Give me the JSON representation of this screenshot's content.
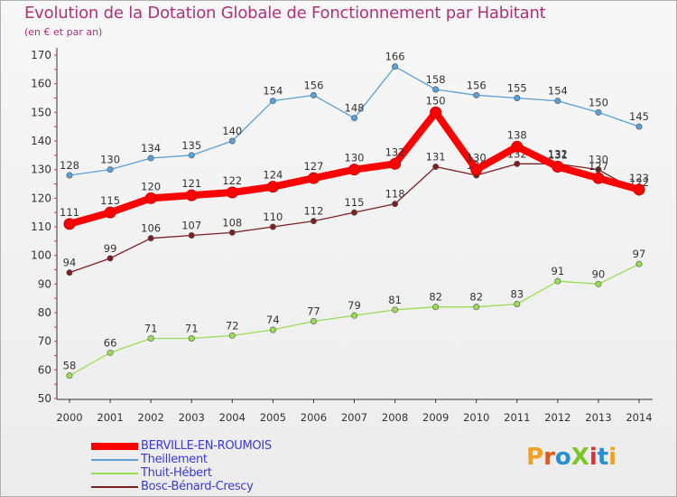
{
  "header": {
    "title": "Evolution de la Dotation Globale de Fonctionnement par Habitant",
    "subtitle": "(en € et par an)"
  },
  "logo": {
    "text": "ProXiti",
    "colors": [
      "#f0a020",
      "#e05a20",
      "#2a8fd0",
      "#7cc62a",
      "#e03030",
      "#2a8fd0",
      "#f0a020"
    ]
  },
  "chart_data": {
    "type": "line",
    "title": "Evolution de la Dotation Globale de Fonctionnement par Habitant",
    "subtitle": "(en € et par an)",
    "xlabel": "",
    "ylabel": "",
    "ylim": [
      50,
      170
    ],
    "yticks": [
      50,
      60,
      70,
      80,
      90,
      100,
      110,
      120,
      130,
      140,
      150,
      160,
      170
    ],
    "grid": false,
    "legend": "bottom-left",
    "categories": [
      "2000",
      "2001",
      "2002",
      "2003",
      "2004",
      "2005",
      "2006",
      "2007",
      "2008",
      "2009",
      "2010",
      "2011",
      "2012",
      "2013",
      "2014"
    ],
    "series": [
      {
        "name": "BERVILLE-EN-ROUMOIS",
        "color": "#ff0000",
        "labelColor": "#333333",
        "emphasis": true,
        "values": [
          111,
          115,
          120,
          121,
          122,
          124,
          127,
          130,
          132,
          150,
          130,
          138,
          131,
          127,
          123
        ]
      },
      {
        "name": "Theillement",
        "color": "#5aa0d8",
        "labelColor": "#333333",
        "emphasis": false,
        "values": [
          128,
          130,
          134,
          135,
          140,
          154,
          156,
          148,
          166,
          158,
          156,
          155,
          154,
          150,
          145
        ]
      },
      {
        "name": "Thuit-Hébert",
        "color": "#99dd55",
        "labelColor": "#333333",
        "emphasis": false,
        "values": [
          58,
          66,
          71,
          71,
          72,
          74,
          77,
          79,
          81,
          82,
          82,
          83,
          91,
          90,
          97
        ]
      },
      {
        "name": "Bosc-Bénard-Crescy",
        "color": "#7a2020",
        "labelColor": "#333333",
        "emphasis": false,
        "values": [
          94,
          99,
          106,
          107,
          108,
          110,
          112,
          115,
          118,
          131,
          128,
          132,
          132,
          130,
          122
        ]
      }
    ]
  }
}
